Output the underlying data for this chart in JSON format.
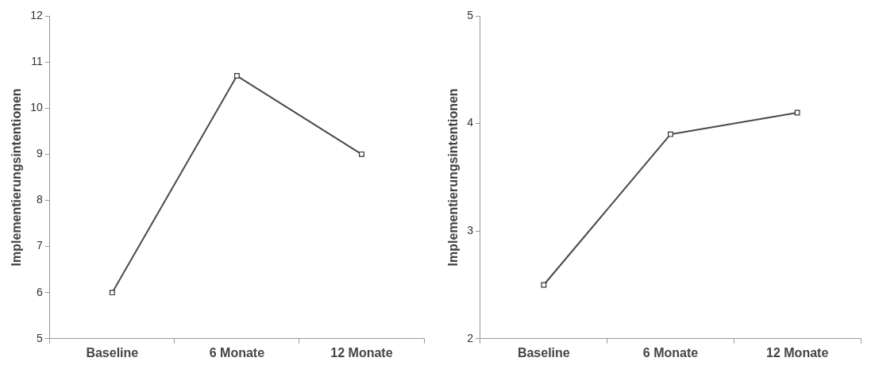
{
  "chart_data": [
    {
      "type": "line",
      "ylabel": "Implementierungsintentionen",
      "categories": [
        "Baseline",
        "6 Monate",
        "12 Monate"
      ],
      "series": [
        {
          "color": "#4a4a4a",
          "values": [
            6.0,
            10.7,
            9.0
          ]
        }
      ],
      "ylim": [
        5,
        12
      ],
      "yticks": [
        5,
        6,
        7,
        8,
        9,
        10,
        11,
        12
      ],
      "grid": false,
      "legend": false,
      "marker": "square",
      "line_style": "solid"
    },
    {
      "type": "line",
      "ylabel": "Implementierungsintentionen",
      "categories": [
        "Baseline",
        "6 Monate",
        "12 Monate"
      ],
      "series": [
        {
          "color": "#4a4a4a",
          "values": [
            2.5,
            3.9,
            4.1
          ]
        }
      ],
      "ylim": [
        2,
        5
      ],
      "yticks": [
        2,
        3,
        4,
        5
      ],
      "grid": false,
      "legend": false,
      "marker": "square",
      "line_style": "solid"
    }
  ]
}
